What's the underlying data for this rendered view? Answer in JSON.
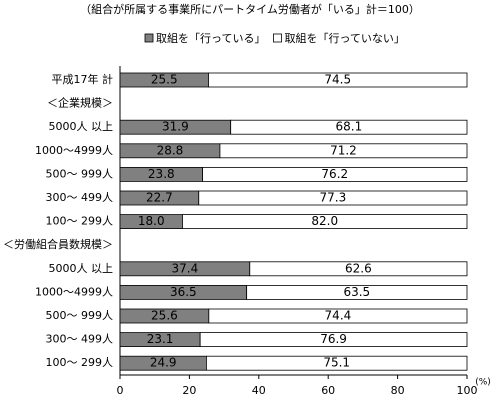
{
  "chart_data": {
    "type": "stacked-bar-horizontal",
    "title": "（組合が所属する事業所にパートタイム労働者が「いる」計＝100）",
    "categories": [
      "平成17年 計",
      "＜企業規模＞",
      "5000人 以上",
      "1000～4999人",
      "500～ 999人",
      "300～ 499人",
      "100～ 299人",
      "＜労働組合員数規模＞",
      "5000人 以上",
      "1000～4999人",
      "500～ 999人",
      "300～ 499人",
      "100～ 299人"
    ],
    "series": [
      {
        "name": "取組を「行っている」",
        "color": "#808080",
        "values": [
          25.5,
          null,
          31.9,
          28.8,
          23.8,
          22.7,
          18,
          null,
          37.4,
          36.5,
          25.6,
          23.1,
          24.9
        ],
        "value_labels": [
          "25.5",
          null,
          "31.9",
          "28.8",
          "23.8",
          "22.7",
          "18.0",
          null,
          "37.4",
          "36.5",
          "25.6",
          "23.1",
          "24.9"
        ]
      },
      {
        "name": "取組を「行っていない」",
        "color": "#ffffff",
        "values": [
          74.5,
          null,
          68.1,
          71.2,
          76.2,
          77.3,
          82,
          null,
          62.6,
          63.5,
          74.4,
          76.9,
          75.1
        ],
        "value_labels": [
          "74.5",
          null,
          "68.1",
          "71.2",
          "76.2",
          "77.3",
          "82.0",
          null,
          "62.6",
          "63.5",
          "74.4",
          "76.9",
          "75.1"
        ]
      }
    ],
    "xlim": [
      0,
      100
    ],
    "xticks": [
      0,
      20,
      40,
      60,
      80,
      100
    ],
    "x_unit": "(%)"
  }
}
